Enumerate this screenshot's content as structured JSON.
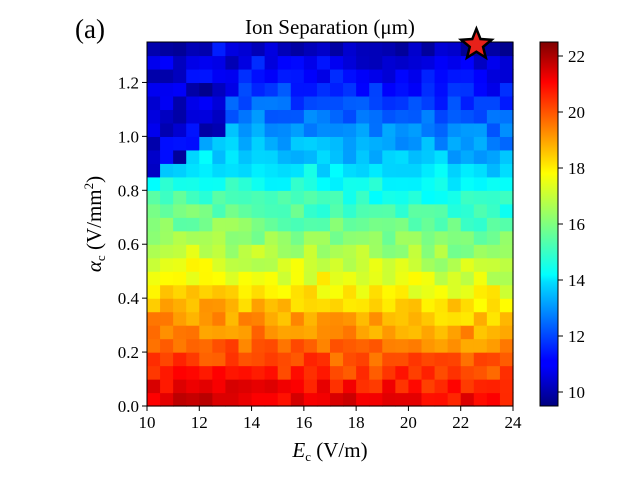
{
  "panel_label": "(a)",
  "chart_data": {
    "type": "heatmap",
    "title": "Ion Separation (μm)",
    "xlabel": {
      "symbol": "E",
      "subscript": "c",
      "unit": " (V/m)"
    },
    "ylabel": {
      "symbol": "α",
      "subscript": "c",
      "unit_prefix": " (V/mm",
      "unit_sup": "2",
      "unit_suffix": ")"
    },
    "xlim": [
      10,
      24
    ],
    "ylim": [
      0.0,
      1.35
    ],
    "x_ticks": [
      {
        "value": 10,
        "label": "10"
      },
      {
        "value": 12,
        "label": "12"
      },
      {
        "value": 14,
        "label": "14"
      },
      {
        "value": 16,
        "label": "16"
      },
      {
        "value": 18,
        "label": "18"
      },
      {
        "value": 20,
        "label": "20"
      },
      {
        "value": 22,
        "label": "22"
      },
      {
        "value": 24,
        "label": "24"
      }
    ],
    "y_ticks": [
      {
        "value": 0.0,
        "label": "0.0"
      },
      {
        "value": 0.2,
        "label": "0.2"
      },
      {
        "value": 0.4,
        "label": "0.4"
      },
      {
        "value": 0.6,
        "label": "0.6"
      },
      {
        "value": 0.8,
        "label": "0.8"
      },
      {
        "value": 1.0,
        "label": "1.0"
      },
      {
        "value": 1.2,
        "label": "1.2"
      }
    ],
    "grid": {
      "nx": 28,
      "ny": 27,
      "dx": 0.5,
      "dy": 0.05
    },
    "value_model": "separation(E, alpha) ≈ 21.3 - 8.2*alpha - 0.05*(E-17) + texture; low-value region (~9.5–12) where alpha > 0.85 + 0.06*(E-10) for E < 13, and alpha > 1.15 + 0.09*(E-13) for E ≥ 13",
    "colorbar": {
      "range": [
        9.5,
        22.5
      ],
      "ticks": [
        {
          "value": 10,
          "label": "10"
        },
        {
          "value": 12,
          "label": "12"
        },
        {
          "value": 14,
          "label": "14"
        },
        {
          "value": 16,
          "label": "16"
        },
        {
          "value": 18,
          "label": "18"
        },
        {
          "value": 20,
          "label": "20"
        },
        {
          "value": 22,
          "label": "22"
        }
      ],
      "colormap": "jet"
    },
    "marker": {
      "shape": "star",
      "x": 22.6,
      "y": 1.34,
      "color": "#e8211a"
    }
  }
}
